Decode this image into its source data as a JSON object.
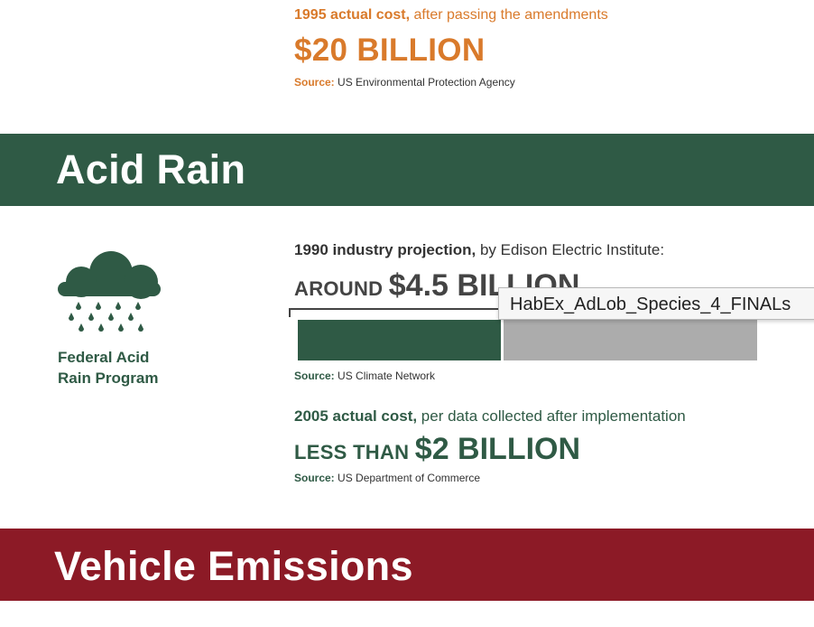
{
  "top": {
    "year_label": "1995 actual cost,",
    "desc": " after passing the amendments",
    "amount": "$20 BILLION",
    "source_label": "Source:",
    "source": " US Environmental Protection Agency"
  },
  "acid_rain": {
    "title": "Acid Rain",
    "icon": "rain-cloud-icon",
    "program_line1": "Federal Acid",
    "program_line2": "Rain Program",
    "projection_label": "1990 industry projection,",
    "projection_desc": " by Edison Electric Institute:",
    "projection_prefix": "AROUND ",
    "projection_amount": "$4.5 BILLION",
    "projection_bar_fraction": 0.44,
    "source1_label": "Source:",
    "source1": " US Climate Network",
    "actual_label": "2005 actual cost,",
    "actual_desc": " per data collected after implementation",
    "actual_prefix": "LESS THAN ",
    "actual_amount": "$2 BILLION",
    "source2_label": "Source:",
    "source2": " US Department of Commerce"
  },
  "tooltip": {
    "text": "HabEx_AdLob_Species_4_FINALs"
  },
  "vehicle": {
    "title": "Vehicle Emissions"
  },
  "colors": {
    "orange": "#d97a2b",
    "green": "#2f5a45",
    "red": "#8c1a26",
    "gray_bar": "#acacac"
  }
}
